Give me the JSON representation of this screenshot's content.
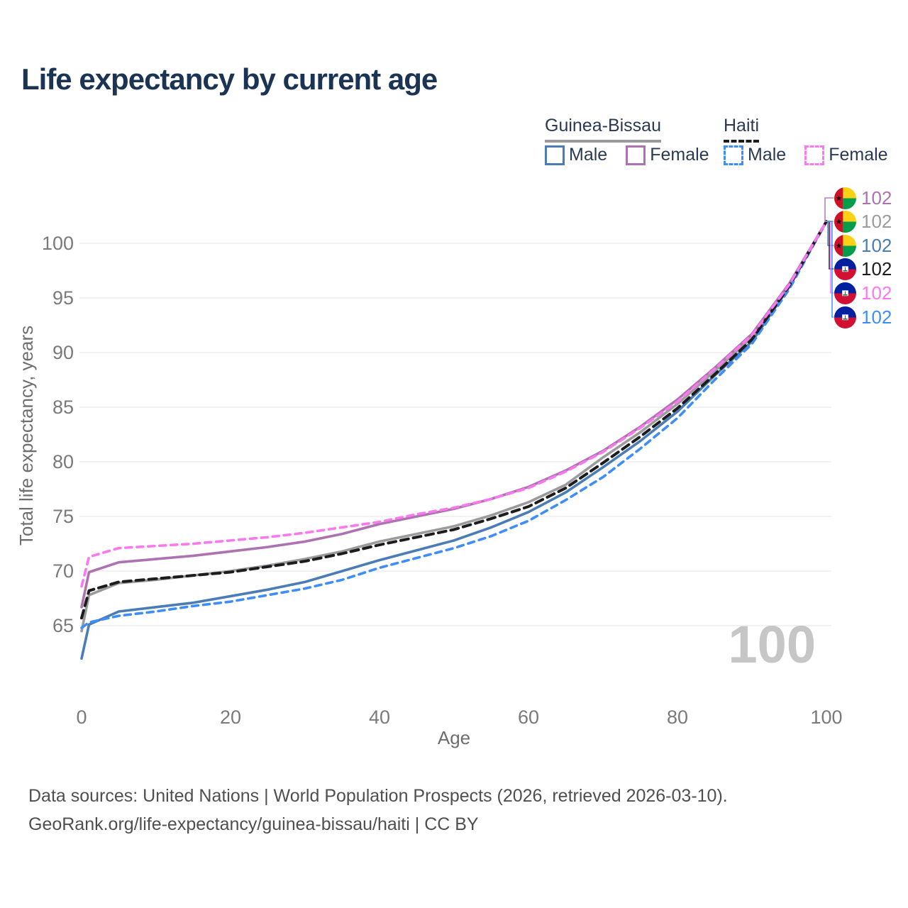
{
  "title": "Life expectancy by current age",
  "watermark": "100",
  "legend": {
    "groups": [
      {
        "label": "Guinea-Bissau",
        "line_style": "solid",
        "line_color": "#9b9b9d",
        "items": [
          {
            "label": "Male",
            "color": "#4a7cb5",
            "dashed": false
          },
          {
            "label": "Female",
            "color": "#ad72b0",
            "dashed": false
          }
        ]
      },
      {
        "label": "Haiti",
        "line_style": "dashed",
        "line_color": "#1c1c1e",
        "items": [
          {
            "label": "Male",
            "color": "#3f8dfb",
            "dashed": true
          },
          {
            "label": "Female",
            "color": "#fb78ee",
            "dashed": true
          }
        ]
      }
    ]
  },
  "chart_data": {
    "type": "line",
    "title": "Life expectancy by current age",
    "xlabel": "Age",
    "ylabel": "Total life expectancy, years",
    "xlim": [
      0,
      100
    ],
    "xticks": [
      0,
      20,
      40,
      60,
      80,
      100
    ],
    "yticks": [
      65,
      70,
      75,
      80,
      85,
      90,
      95,
      100
    ],
    "grid": true,
    "x": [
      0,
      1,
      5,
      10,
      15,
      20,
      25,
      30,
      35,
      40,
      45,
      50,
      55,
      60,
      65,
      70,
      75,
      80,
      85,
      90,
      95,
      100
    ],
    "series": [
      {
        "id": "gb-male",
        "name": "Guinea-Bissau Male",
        "color": "#4a7cb5",
        "dashed": false,
        "width": 3.6,
        "values": [
          62.0,
          65.1,
          66.3,
          66.7,
          67.1,
          67.7,
          68.3,
          69.0,
          70.0,
          71.0,
          71.9,
          72.8,
          74.0,
          75.4,
          77.2,
          79.5,
          81.9,
          84.6,
          87.9,
          91.0,
          96.0,
          102
        ]
      },
      {
        "id": "gb-total",
        "name": "Guinea-Bissau Total",
        "color": "#9b9b9d",
        "dashed": false,
        "width": 3.6,
        "values": [
          64.5,
          67.8,
          68.9,
          69.2,
          69.6,
          70.0,
          70.5,
          71.1,
          71.8,
          72.7,
          73.4,
          74.1,
          75.1,
          76.3,
          77.9,
          80.4,
          82.7,
          85.3,
          88.3,
          91.4,
          96.2,
          102
        ]
      },
      {
        "id": "gb-female",
        "name": "Guinea-Bissau Female",
        "color": "#ad72b0",
        "dashed": false,
        "width": 3.6,
        "values": [
          66.7,
          69.9,
          70.8,
          71.1,
          71.4,
          71.8,
          72.2,
          72.7,
          73.4,
          74.3,
          75.0,
          75.7,
          76.6,
          77.7,
          79.2,
          81.0,
          83.2,
          85.7,
          88.6,
          91.7,
          96.3,
          102
        ]
      },
      {
        "id": "ht-male",
        "name": "Haiti Male",
        "color": "#3f8dfb",
        "dashed": true,
        "dash_pattern": "9 7",
        "width": 3.6,
        "values": [
          64.8,
          65.3,
          65.9,
          66.3,
          66.8,
          67.2,
          67.8,
          68.4,
          69.2,
          70.3,
          71.2,
          72.1,
          73.2,
          74.6,
          76.5,
          78.6,
          81.2,
          84.0,
          87.5,
          90.8,
          95.8,
          102
        ]
      },
      {
        "id": "ht-total",
        "name": "Haiti Total",
        "color": "#1c1c1e",
        "dashed": true,
        "dash_pattern": "11 7",
        "width": 4,
        "values": [
          65.7,
          68.2,
          69.0,
          69.3,
          69.6,
          69.9,
          70.4,
          70.9,
          71.6,
          72.4,
          73.1,
          73.8,
          74.8,
          75.9,
          77.6,
          79.9,
          82.3,
          84.9,
          88.0,
          91.2,
          96.1,
          102
        ]
      },
      {
        "id": "ht-female",
        "name": "Haiti Female",
        "color": "#fb78ee",
        "dashed": true,
        "dash_pattern": "9 7",
        "width": 3.6,
        "values": [
          68.6,
          71.3,
          72.1,
          72.3,
          72.5,
          72.8,
          73.1,
          73.5,
          74.0,
          74.5,
          75.2,
          75.8,
          76.6,
          77.6,
          79.1,
          80.9,
          83.1,
          85.5,
          88.5,
          91.6,
          96.2,
          102
        ]
      }
    ],
    "end_labels": [
      {
        "value": "102",
        "color": "#ad72b0",
        "flag": "guinea-bissau",
        "series": "gb-female"
      },
      {
        "value": "102",
        "color": "#9b9b9d",
        "flag": "guinea-bissau",
        "series": "gb-total"
      },
      {
        "value": "102",
        "color": "#4a7cb5",
        "flag": "guinea-bissau",
        "series": "gb-male"
      },
      {
        "value": "102",
        "color": "#1c1c1e",
        "flag": "haiti",
        "series": "ht-total"
      },
      {
        "value": "102",
        "color": "#fb78ee",
        "flag": "haiti",
        "series": "ht-female"
      },
      {
        "value": "102",
        "color": "#3f8dfb",
        "flag": "haiti",
        "series": "ht-male"
      }
    ]
  },
  "footer": {
    "line1": "Data sources: United Nations | World Population Prospects (2026, retrieved 2026-03-10).",
    "line2": "GeoRank.org/life-expectancy/guinea-bissau/haiti | CC BY"
  }
}
